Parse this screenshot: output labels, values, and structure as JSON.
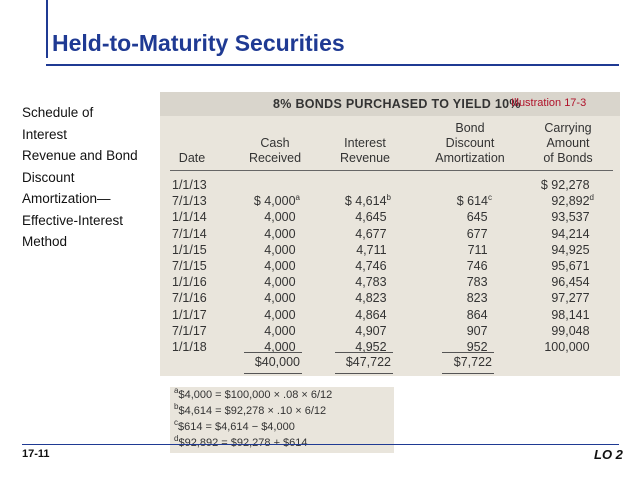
{
  "title": "Held-to-Maturity Securities",
  "side_text": [
    "Schedule of",
    "Interest",
    "Revenue and Bond",
    "Discount",
    "Amortization—",
    "Effective-Interest",
    "Method"
  ],
  "illustration": {
    "heading": "8% BONDS PURCHASED TO YIELD 10%",
    "label": "Illustration 17-3",
    "columns": {
      "date": "Date",
      "cash": [
        "Cash",
        "Received"
      ],
      "interest": [
        "Interest",
        "Revenue"
      ],
      "amort": [
        "Bond",
        "Discount",
        "Amortization"
      ],
      "carrying": [
        "Carrying",
        "Amount",
        "of Bonds"
      ]
    },
    "dates": [
      "1/1/13",
      "7/1/13",
      "1/1/14",
      "7/1/14",
      "1/1/15",
      "7/1/15",
      "1/1/16",
      "7/1/16",
      "1/1/17",
      "7/1/17",
      "1/1/18"
    ],
    "cash": [
      "",
      "$ 4,000",
      "4,000",
      "4,000",
      "4,000",
      "4,000",
      "4,000",
      "4,000",
      "4,000",
      "4,000",
      "4,000"
    ],
    "interest": [
      "",
      "$ 4,614",
      "4,645",
      "4,677",
      "4,711",
      "4,746",
      "4,783",
      "4,823",
      "4,864",
      "4,907",
      "4,952"
    ],
    "amort": [
      "",
      "$ 614",
      "645",
      "677",
      "711",
      "746",
      "783",
      "823",
      "864",
      "907",
      "952"
    ],
    "carrying": [
      "$ 92,278",
      "92,892",
      "93,537",
      "94,214",
      "94,925",
      "95,671",
      "96,454",
      "97,277",
      "98,141",
      "99,048",
      "100,000"
    ],
    "marks": {
      "cash": "a",
      "interest": "b",
      "amort": "c",
      "carrying": "d"
    },
    "totals": {
      "cash": "$40,000",
      "interest": "$47,722",
      "amort": "$7,722"
    }
  },
  "footnotes": [
    {
      "mark": "a",
      "text": "$4,000 = $100,000 × .08 × 6/12"
    },
    {
      "mark": "b",
      "text": "$4,614 = $92,278 × .10 × 6/12"
    },
    {
      "mark": "c",
      "text": "$614 = $4,614 − $4,000"
    },
    {
      "mark": "d",
      "text": "$92,892 = $92,278 + $614"
    }
  ],
  "page_number": "17-11",
  "lo": "LO 2",
  "colors": {
    "title": "#1f3a93",
    "illustration_label": "#b0122a",
    "panel": "#e9e5dc"
  }
}
